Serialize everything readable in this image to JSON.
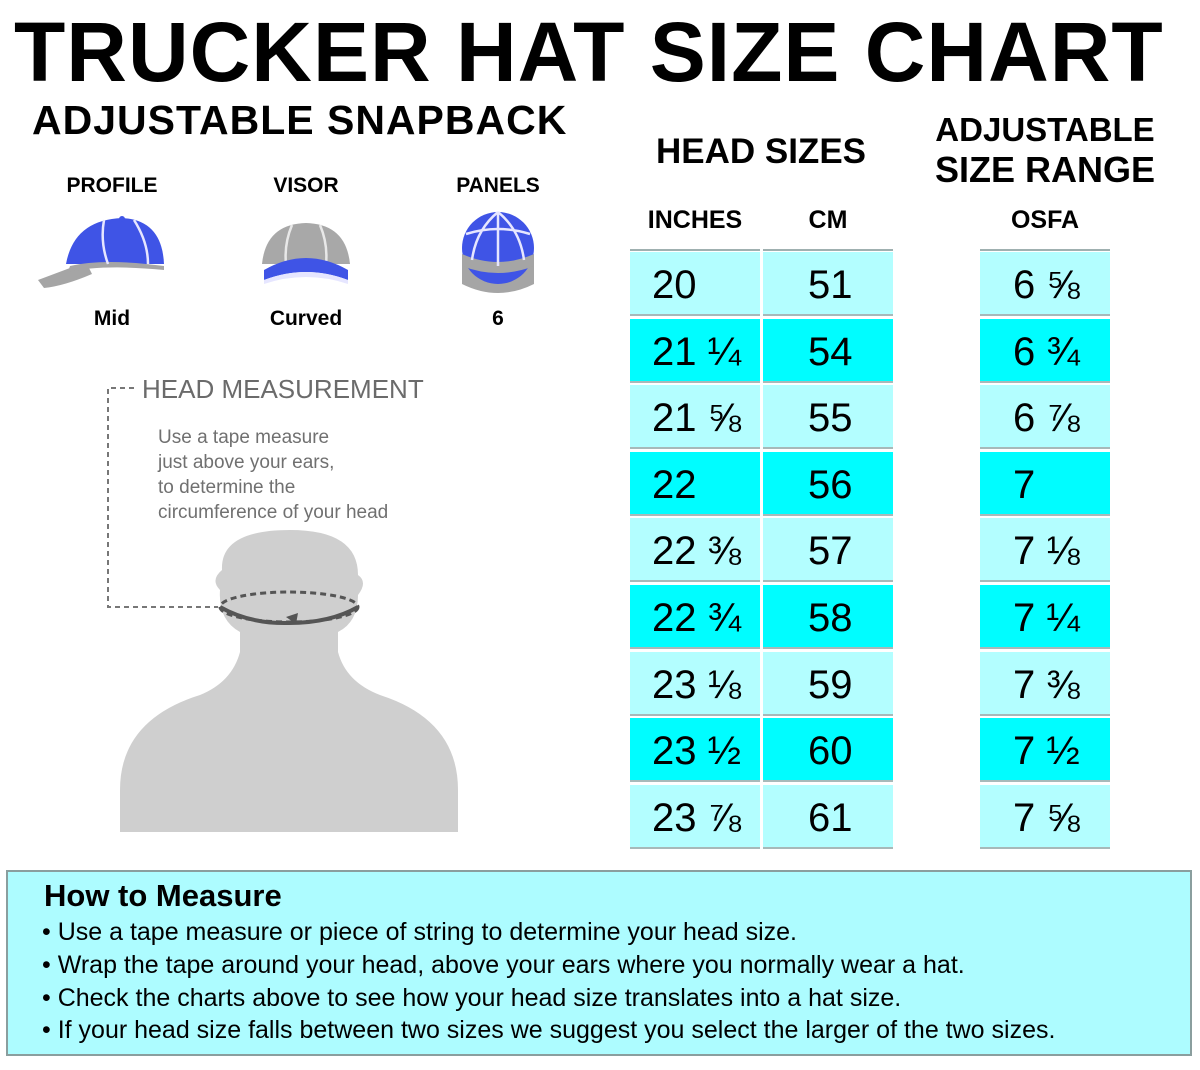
{
  "title": "TRUCKER HAT SIZE CHART",
  "subtitle": "ADJUSTABLE SNAPBACK",
  "specs": [
    {
      "label": "PROFILE",
      "value": "Mid",
      "icon": "hat-profile-icon"
    },
    {
      "label": "VISOR",
      "value": "Curved",
      "icon": "hat-visor-icon"
    },
    {
      "label": "PANELS",
      "value": "6",
      "icon": "hat-panels-icon"
    }
  ],
  "head_measurement": {
    "title": "HEAD MEASUREMENT",
    "lines": [
      "Use a tape measure",
      "just above your ears,",
      "to determine the",
      "circumference of your head"
    ]
  },
  "colors": {
    "hat_blue": "#3f54e6",
    "hat_gray": "#a5a5a5",
    "row_light": "#b3feff",
    "row_dark": "#00fdff",
    "box_bg": "#adfcff",
    "silhouette": "#cfcfcf"
  },
  "chart_data": {
    "type": "table",
    "group_headers": {
      "head_sizes": "HEAD SIZES",
      "adjustable": [
        "ADJUSTABLE",
        "SIZE RANGE"
      ]
    },
    "columns": [
      "INCHES",
      "CM",
      "OSFA"
    ],
    "rows": [
      [
        "20",
        "51",
        "6 ⅝"
      ],
      [
        "21 ¼",
        "54",
        "6 ¾"
      ],
      [
        "21 ⅝",
        "55",
        "6 ⅞"
      ],
      [
        "22",
        "56",
        "7"
      ],
      [
        "22 ⅜",
        "57",
        "7 ⅛"
      ],
      [
        "22 ¾",
        "58",
        "7 ¼"
      ],
      [
        "23 ⅛",
        "59",
        "7 ⅜"
      ],
      [
        "23 ½",
        "60",
        "7 ½"
      ],
      [
        "23 ⅞",
        "61",
        "7 ⅝"
      ]
    ]
  },
  "how_to_measure": {
    "title": "How to Measure",
    "items": [
      "• Use a tape measure or piece of string to determine your head size.",
      "• Wrap the tape around your head, above your ears where you normally wear a hat.",
      "• Check the charts above to see how your head size translates into a hat size.",
      "• If your head size falls between two sizes we suggest you select the larger of the two sizes."
    ]
  }
}
